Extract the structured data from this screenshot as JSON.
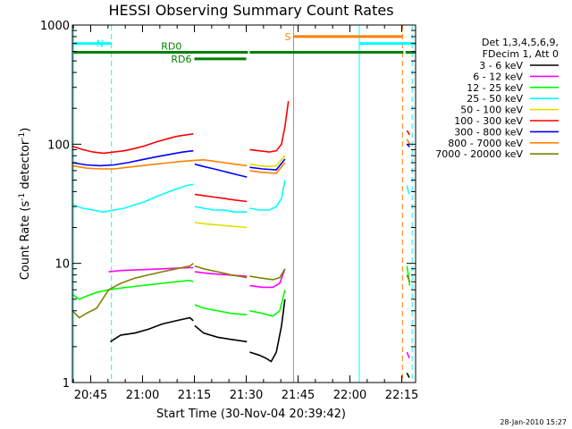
{
  "chart_data": {
    "type": "line",
    "title": "HESSI Observing Summary Count Rates",
    "xlabel": "Start Time (30-Nov-04 20:39:42)",
    "ylabel_prefix": "Count Rate (s",
    "ylabel_sup1": "-1",
    "ylabel_mid": " detector",
    "ylabel_sup2": "-1",
    "ylabel_suffix": ")",
    "yscale": "log",
    "ylim": [
      1,
      1000
    ],
    "xlim": [
      "20:39:42",
      "22:19:00"
    ],
    "x_ticks": [
      "20:45",
      "21:00",
      "21:15",
      "21:30",
      "21:45",
      "22:00",
      "22:15"
    ],
    "x_tick_minutes": [
      5.3,
      20.3,
      35.3,
      50.3,
      65.3,
      80.3,
      95.3
    ],
    "y_ticks": [
      "1",
      "10",
      "100",
      "1000"
    ],
    "y_tick_values": [
      1,
      10,
      100,
      1000
    ],
    "timestamp": "28-Jan-2010 15:27",
    "legend_header": [
      "Det 1,3,4,5,6,9,",
      "FDecim 1, Att 0"
    ],
    "series": [
      {
        "name": "3 - 6 keV",
        "color": "#000000",
        "segments": [
          {
            "x": [
              0,
              10,
              11,
              14,
              18,
              22,
              26,
              30,
              34,
              35
            ],
            "y": [
              null,
              null,
              2.2,
              2.5,
              2.6,
              2.8,
              3.1,
              3.3,
              3.5,
              3.3
            ]
          },
          {
            "x": [
              35.4,
              38,
              42,
              46,
              50.5
            ],
            "y": [
              3.0,
              2.6,
              2.4,
              2.3,
              2.2
            ]
          },
          {
            "x": [
              51.3,
              54,
              56,
              57.5,
              59,
              60.5,
              61.5
            ],
            "y": [
              1.8,
              1.7,
              1.6,
              1.5,
              1.8,
              3.0,
              5.0
            ]
          },
          {
            "x": [
              96.8,
              97.5
            ],
            "y": [
              1.2,
              1.1
            ]
          }
        ]
      },
      {
        "name": "6 - 12 keV",
        "color": "#ff00ff",
        "segments": [
          {
            "x": [
              10.5,
              14,
              18,
              22,
              26,
              30,
              34,
              35
            ],
            "y": [
              8.5,
              8.7,
              8.8,
              8.9,
              9.0,
              9.1,
              9.2,
              9.2
            ]
          },
          {
            "x": [
              35.4,
              40,
              45,
              50.5
            ],
            "y": [
              8.5,
              8.2,
              8.0,
              7.8
            ]
          },
          {
            "x": [
              51.3,
              55,
              58,
              60,
              61.5
            ],
            "y": [
              6.5,
              6.3,
              6.3,
              6.8,
              9.0
            ]
          },
          {
            "x": [
              96.8,
              97.5
            ],
            "y": [
              1.8,
              1.6
            ]
          }
        ]
      },
      {
        "name": "12 - 25 keV",
        "color": "#00ff00",
        "segments": [
          {
            "x": [
              0,
              2,
              4,
              7,
              10.5,
              14,
              18,
              22,
              26,
              30,
              34,
              35
            ],
            "y": [
              5.5,
              5.0,
              5.3,
              5.7,
              6.0,
              6.2,
              6.4,
              6.6,
              6.8,
              7.0,
              7.2,
              7.0
            ]
          },
          {
            "x": [
              35.4,
              38,
              42,
              46,
              50.5
            ],
            "y": [
              4.5,
              4.2,
              4.0,
              3.8,
              3.7
            ]
          },
          {
            "x": [
              51.3,
              55,
              58,
              60,
              61.5
            ],
            "y": [
              4.0,
              3.8,
              3.6,
              4.0,
              6.0
            ]
          },
          {
            "x": [
              96.8,
              97.2,
              97.6
            ],
            "y": [
              9.5,
              8.0,
              6.5
            ]
          }
        ]
      },
      {
        "name": "25 - 50 keV",
        "color": "#00ffff",
        "segments": [
          {
            "x": [
              0,
              3,
              6,
              9,
              12,
              15,
              18,
              21,
              24,
              27,
              30,
              33,
              35
            ],
            "y": [
              31,
              29,
              28,
              27,
              28,
              29,
              31,
              33,
              36,
              39,
              42,
              45,
              46
            ]
          },
          {
            "x": [
              35.4,
              38,
              41,
              44,
              47,
              50.5
            ],
            "y": [
              30,
              29,
              28,
              28,
              27,
              27
            ]
          },
          {
            "x": [
              51.3,
              54,
              57,
              59,
              60.5,
              61.5
            ],
            "y": [
              29,
              28,
              28,
              30,
              35,
              50
            ]
          },
          {
            "x": [
              96.8,
              97.2,
              97.6
            ],
            "y": [
              45,
              40,
              38
            ]
          }
        ]
      },
      {
        "name": "50 - 100 keV",
        "color": "#dfdf00",
        "segments": [
          {
            "x": [
              35.4,
              38,
              42,
              46,
              50.5
            ],
            "y": [
              22,
              21.5,
              21,
              20.5,
              20
            ]
          },
          {
            "x": [
              51.3,
              54,
              57,
              59,
              61.5
            ],
            "y": [
              68,
              66,
              65,
              66,
              80
            ]
          }
        ]
      },
      {
        "name": "100 - 300 keV",
        "color": "#ff0000",
        "segments": [
          {
            "x": [
              0,
              3,
              6,
              9,
              12,
              15,
              18,
              21,
              24,
              27,
              30,
              33,
              35
            ],
            "y": [
              96,
              90,
              86,
              84,
              86,
              88,
              92,
              97,
              104,
              110,
              116,
              120,
              122
            ]
          },
          {
            "x": [
              35.4,
              38,
              41,
              44,
              47,
              50.5
            ],
            "y": [
              38,
              37,
              36,
              35,
              34,
              33
            ]
          },
          {
            "x": [
              51.3,
              54,
              57,
              59,
              60.5,
              61.5,
              62.5
            ],
            "y": [
              90,
              88,
              86,
              88,
              100,
              140,
              230
            ]
          },
          {
            "x": [
              96.8,
              97.2,
              97.6
            ],
            "y": [
              130,
              125,
              120
            ]
          }
        ]
      },
      {
        "name": "300 - 800 keV",
        "color": "#0000ff",
        "segments": [
          {
            "x": [
              0,
              4,
              8,
              12,
              16,
              20,
              24,
              28,
              32,
              35
            ],
            "y": [
              70,
              67,
              66,
              67,
              70,
              74,
              78,
              82,
              86,
              88
            ]
          },
          {
            "x": [
              35.4,
              38,
              41,
              44,
              47,
              50.5
            ],
            "y": [
              68,
              65,
              62,
              59,
              56,
              53
            ]
          },
          {
            "x": [
              51.3,
              55,
              59,
              61.5
            ],
            "y": [
              64,
              62,
              61,
              75
            ]
          },
          {
            "x": [
              96.8,
              97.6
            ],
            "y": [
              100,
              95
            ]
          }
        ]
      },
      {
        "name": "800 - 7000 keV",
        "color": "#ff8000",
        "segments": [
          {
            "x": [
              0,
              4,
              8,
              12,
              16,
              20,
              24,
              28,
              32,
              35,
              38,
              41,
              44,
              47,
              50.5
            ],
            "y": [
              66,
              63,
              62,
              62,
              64,
              66,
              68,
              70,
              72,
              73,
              74,
              72,
              70,
              68,
              66
            ]
          },
          {
            "x": [
              51.3,
              55,
              59,
              61.5
            ],
            "y": [
              60,
              58,
              57,
              70
            ]
          },
          {
            "x": [
              96.8,
              97.6
            ],
            "y": [
              110,
              100
            ]
          }
        ]
      },
      {
        "name": "7000 - 20000 keV",
        "color": "#808000",
        "segments": [
          {
            "x": [
              0,
              2,
              4,
              7,
              10.5,
              14,
              18,
              22,
              26,
              30,
              34,
              35
            ],
            "y": [
              4.0,
              3.5,
              3.8,
              4.2,
              6.0,
              6.8,
              7.5,
              8.0,
              8.5,
              9.0,
              9.5,
              10.0
            ]
          },
          {
            "x": [
              35.4,
              38,
              42,
              46,
              50.5
            ],
            "y": [
              9.5,
              9.0,
              8.5,
              8.0,
              7.6
            ]
          },
          {
            "x": [
              51.3,
              55,
              58,
              60,
              61.5
            ],
            "y": [
              7.8,
              7.5,
              7.3,
              7.6,
              9.0
            ]
          },
          {
            "x": [
              96.8,
              97.6
            ],
            "y": [
              8.0,
              7.0
            ]
          }
        ]
      }
    ],
    "event_lines": [
      {
        "minute": 0.3,
        "color": "#00ffff",
        "style": "solid"
      },
      {
        "minute": 11.3,
        "color": "#00ffff",
        "style": "dashed"
      },
      {
        "minute": 64.0,
        "color": "#ff8000",
        "style": "solid"
      },
      {
        "minute": 83.0,
        "color": "#00ffff",
        "style": "solid"
      },
      {
        "minute": 95.5,
        "color": "#ff8000",
        "style": "dashed"
      },
      {
        "minute": 98.3,
        "color": "#00ffff",
        "style": "dashed"
      }
    ],
    "flag_bars": [
      {
        "label": "N",
        "color": "#00ffff",
        "start": 0.3,
        "end": 11.3,
        "y": 700,
        "label_side": "right"
      },
      {
        "label": "",
        "color": "#00ffff",
        "start": 83.0,
        "end": 99.3,
        "y": 700
      },
      {
        "label": "S",
        "color": "#ff8000",
        "start": 64.0,
        "end": 95.5,
        "y": 800,
        "label_side": "left"
      },
      {
        "label": "RD0",
        "color": "#008000",
        "start": 0.3,
        "end": 50.8,
        "y": 590,
        "label_side": "above-mid"
      },
      {
        "label": "",
        "color": "#008000",
        "start": 51.3,
        "end": 95.8,
        "y": 590
      },
      {
        "label": "",
        "color": "#008000",
        "start": 96.4,
        "end": 99.3,
        "y": 590
      },
      {
        "label": "RD6",
        "color": "#008000",
        "start": 35.3,
        "end": 50.3,
        "y": 520,
        "label_side": "left"
      }
    ]
  }
}
